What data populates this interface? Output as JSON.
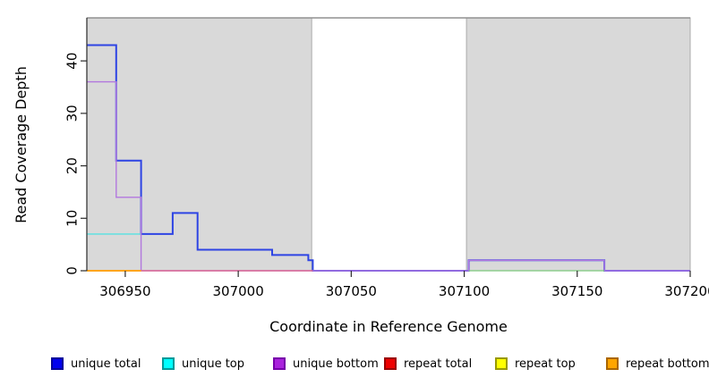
{
  "chart_data": {
    "type": "line",
    "subtype": "step-coverage",
    "title": "",
    "xlabel": "Coordinate in Reference Genome",
    "ylabel": "Read Coverage Depth",
    "xlim": [
      306933,
      307200
    ],
    "ylim": [
      0,
      48.2
    ],
    "x_ticks": [
      306950,
      307000,
      307050,
      307100,
      307150,
      307200
    ],
    "y_ticks": [
      0,
      10,
      20,
      30,
      40
    ],
    "grid": false,
    "background_color": "#ffffff",
    "plot_top_line_color": "#909090",
    "axis_color": "#2a2a2a",
    "shaded_regions": [
      {
        "name": "left-gray-region",
        "x_from": 306933,
        "x_to": 307032.5,
        "fill": "#d9d9d9",
        "stroke": "#acacac"
      },
      {
        "name": "right-gray-region",
        "x_from": 307101,
        "x_to": 307200,
        "fill": "#d9d9d9",
        "stroke": "#acacac"
      }
    ],
    "series": [
      {
        "name": "unique total",
        "color": "#2e44e4",
        "width": 2,
        "points": [
          [
            306933,
            43
          ],
          [
            306946,
            43
          ],
          [
            306946,
            21
          ],
          [
            306957,
            21
          ],
          [
            306957,
            7
          ],
          [
            306971,
            7
          ],
          [
            306971,
            11
          ],
          [
            306982,
            11
          ],
          [
            306982,
            4
          ],
          [
            307015,
            4
          ],
          [
            307015,
            3
          ],
          [
            307031,
            3
          ],
          [
            307031,
            2
          ],
          [
            307033,
            2
          ],
          [
            307033,
            0
          ],
          [
            307102,
            0
          ],
          [
            307102,
            2
          ],
          [
            307162,
            2
          ],
          [
            307162,
            0
          ],
          [
            307200,
            0
          ]
        ]
      },
      {
        "name": "unique top",
        "color": "#55e2e2",
        "width": 1.4,
        "points": [
          [
            306933,
            7
          ],
          [
            306957,
            7
          ]
        ]
      },
      {
        "name": "unique bottom",
        "color": "#b278de",
        "width": 1.4,
        "points": [
          [
            306933,
            36
          ],
          [
            306946,
            36
          ],
          [
            306946,
            14
          ],
          [
            306957,
            14
          ],
          [
            306957,
            0
          ],
          [
            307102,
            0
          ],
          [
            307102,
            2
          ],
          [
            307162,
            2
          ],
          [
            307162,
            0
          ],
          [
            307200,
            0
          ]
        ]
      },
      {
        "name": "repeat total",
        "color": "#df5f82",
        "width": 1.3,
        "points": [
          [
            306957,
            0
          ],
          [
            307033,
            0
          ]
        ]
      },
      {
        "name": "repeat bottom line",
        "color": "#ffa51e",
        "width": 2,
        "points": [
          [
            306933,
            0
          ],
          [
            306957,
            0
          ]
        ]
      },
      {
        "name": "unlabeled green segment",
        "color": "#7cc87c",
        "width": 1.3,
        "points": [
          [
            307102,
            0
          ],
          [
            307162,
            0
          ]
        ]
      }
    ],
    "legend": {
      "position": "bottom",
      "entries": [
        {
          "label": "unique total",
          "fill": "#0000ee",
          "border": "#000099"
        },
        {
          "label": "unique top",
          "fill": "#00ffff",
          "border": "#009999"
        },
        {
          "label": "unique bottom",
          "fill": "#aa22dd",
          "border": "#7700aa"
        },
        {
          "label": "repeat total",
          "fill": "#ee0000",
          "border": "#990000"
        },
        {
          "label": "repeat top",
          "fill": "#ffff00",
          "border": "#999900"
        },
        {
          "label": "repeat bottom",
          "fill": "#ffa500",
          "border": "#aa6600"
        }
      ]
    }
  }
}
